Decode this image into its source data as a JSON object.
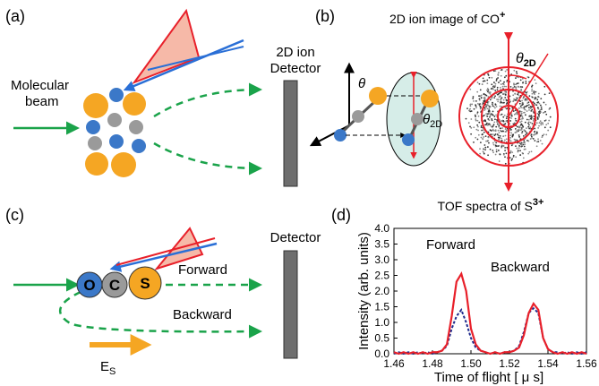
{
  "panels": {
    "a": "(a)",
    "b": "(b)",
    "c": "(c)",
    "d": "(d)"
  },
  "panel_a": {
    "beam_label": [
      "Molecular",
      "beam"
    ],
    "detector_label": [
      "2D ion",
      "Detector"
    ]
  },
  "panel_b": {
    "title": "2D ion image of CO",
    "title_sup": "+",
    "theta": "θ",
    "theta_2d": "θ",
    "theta_2d_sub": "2D",
    "image_angle": "θ",
    "image_angle_sub": "2D"
  },
  "panel_c": {
    "atoms": [
      "O",
      "C",
      "S"
    ],
    "forward": "Forward",
    "backward": "Backward",
    "detector": "Detector",
    "field": "E",
    "field_sub": "S"
  },
  "chart_data": {
    "type": "line",
    "title": "TOF spectra of S",
    "title_sup": "3+",
    "xlabel": "Time of flight [ μ s]",
    "ylabel": "Intensity (arb. units)",
    "x": [
      1.46,
      1.4625,
      1.465,
      1.4675,
      1.47,
      1.4725,
      1.475,
      1.4775,
      1.48,
      1.4825,
      1.485,
      1.4875,
      1.49,
      1.4925,
      1.495,
      1.4975,
      1.5,
      1.5025,
      1.505,
      1.5075,
      1.51,
      1.5125,
      1.515,
      1.5175,
      1.52,
      1.5225,
      1.525,
      1.5275,
      1.53,
      1.5325,
      1.535,
      1.5375,
      1.54,
      1.5425,
      1.545,
      1.5475,
      1.55,
      1.5525,
      1.555,
      1.5575,
      1.56
    ],
    "series": [
      {
        "name": "Forward",
        "color": "#e8202a",
        "dash": false,
        "values": [
          0.05,
          0.0,
          0.05,
          0.0,
          0.05,
          0.0,
          0.05,
          0.0,
          0.05,
          0.05,
          0.1,
          0.3,
          1.2,
          2.3,
          2.55,
          2.0,
          0.8,
          0.3,
          0.1,
          0.05,
          0.0,
          0.05,
          0.0,
          0.05,
          0.05,
          0.1,
          0.2,
          0.6,
          1.3,
          1.6,
          1.4,
          0.5,
          0.15,
          0.05,
          0.0,
          0.05,
          0.0,
          0.05,
          0.0,
          0.05,
          0.0
        ]
      },
      {
        "name": "Backward",
        "color": "#1f2a8c",
        "dash": true,
        "values": [
          0.0,
          0.05,
          0.0,
          0.05,
          0.0,
          0.05,
          0.0,
          0.05,
          0.0,
          0.05,
          0.1,
          0.25,
          0.8,
          1.2,
          1.4,
          1.0,
          0.5,
          0.2,
          0.1,
          0.05,
          0.0,
          0.05,
          0.0,
          0.05,
          0.05,
          0.1,
          0.25,
          0.7,
          1.3,
          1.45,
          1.3,
          0.5,
          0.15,
          0.05,
          0.05,
          0.0,
          0.05,
          0.0,
          0.05,
          0.0,
          0.05
        ]
      }
    ],
    "xlim": [
      1.46,
      1.56
    ],
    "ylim": [
      0,
      4
    ],
    "xticks": [
      1.46,
      1.48,
      {
        "value": 1.5,
        "label": "1.50"
      },
      1.52,
      1.54,
      1.56
    ],
    "yticks": [
      {
        "value": 0,
        "label": "0.0"
      },
      {
        "value": 0.5,
        "label": "0.5"
      },
      {
        "value": 1,
        "label": "1.0"
      },
      {
        "value": 1.5,
        "label": "1.5"
      },
      {
        "value": 2,
        "label": "2.0"
      },
      {
        "value": 2.5,
        "label": "2.5"
      },
      {
        "value": 3,
        "label": "3.0"
      },
      {
        "value": 3.5,
        "label": "3.5"
      },
      {
        "value": 4,
        "label": "4.0"
      }
    ]
  }
}
